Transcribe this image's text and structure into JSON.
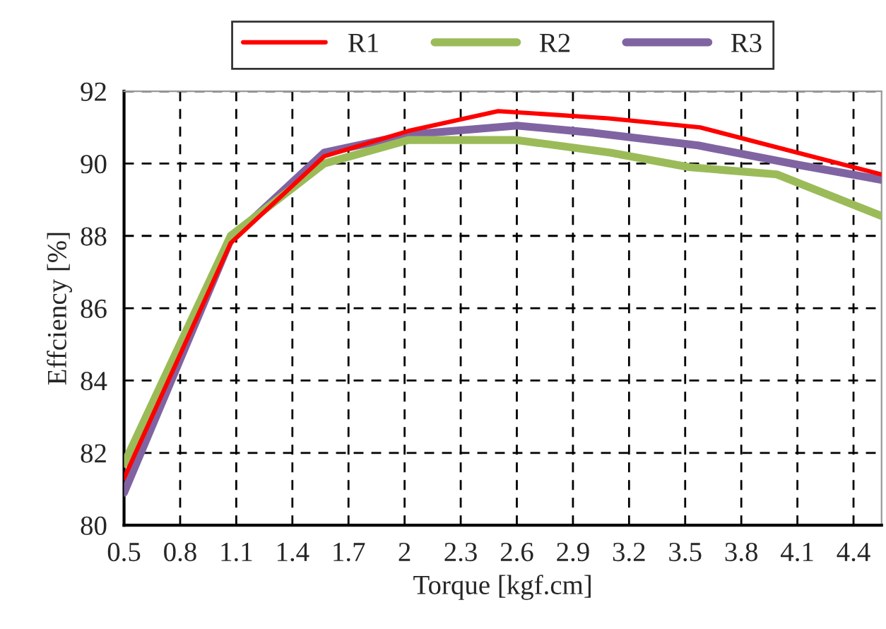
{
  "chart_data": {
    "type": "line",
    "xlabel": "Torque [kgf.cm]",
    "ylabel": "Effciency [%]",
    "xlim": [
      0.5,
      4.55
    ],
    "xticks": [
      0.5,
      0.8,
      1.1,
      1.4,
      1.7,
      2,
      2.3,
      2.6,
      2.9,
      3.2,
      3.5,
      3.8,
      4.1,
      4.4
    ],
    "ylim": [
      80,
      92
    ],
    "yticks": [
      80,
      82,
      84,
      86,
      88,
      90,
      92
    ],
    "grid": true,
    "legend": "top",
    "marker": "none",
    "line_style": "solid",
    "series": [
      {
        "name": "R1",
        "color": "#ff0000",
        "x": [
          0.5,
          1.07,
          1.57,
          2.02,
          2.5,
          3.09,
          3.58,
          4.1,
          4.55
        ],
        "values": [
          81.3,
          87.8,
          90.2,
          90.9,
          91.45,
          91.25,
          91.0,
          90.3,
          89.7
        ]
      },
      {
        "name": "R2",
        "color": "#9bbb59",
        "x": [
          0.5,
          1.07,
          1.57,
          2.02,
          2.6,
          3.1,
          3.52,
          3.99,
          4.55
        ],
        "values": [
          81.7,
          88.0,
          90.0,
          90.65,
          90.65,
          90.3,
          89.9,
          89.7,
          88.55
        ]
      },
      {
        "name": "R3",
        "color": "#8064a2",
        "x": [
          0.5,
          1.07,
          1.57,
          2.02,
          2.6,
          3.01,
          3.57,
          4.12,
          4.55
        ],
        "values": [
          80.9,
          87.9,
          90.3,
          90.8,
          91.05,
          90.85,
          90.5,
          89.95,
          89.55
        ]
      }
    ]
  }
}
